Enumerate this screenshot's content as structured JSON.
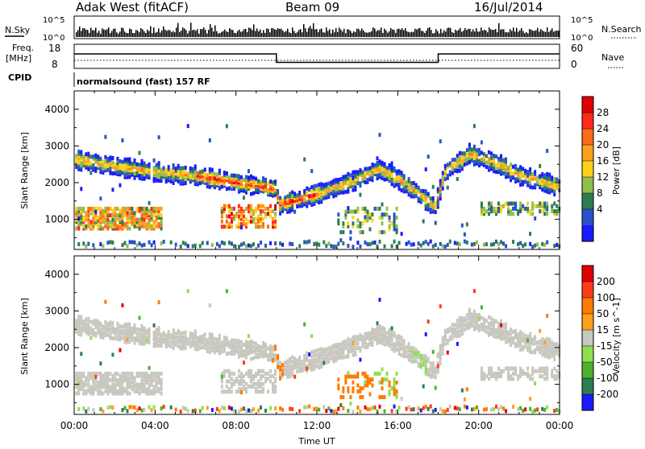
{
  "header": {
    "station": "Adak West (fitACF)",
    "beam": "Beam 09",
    "date": "16/Jul/2014"
  },
  "top_panels": {
    "nsky_label": "N.Sky",
    "nsky_ticks": [
      "10^5",
      "10^0"
    ],
    "nsearch_label": "N.Search",
    "nsearch_ticks": [
      "10^5",
      "10^0"
    ],
    "freq_label_1": "Freq.",
    "freq_label_2": "[MHz]",
    "freq_ticks": [
      "18",
      "8"
    ],
    "nave_label": "Nave",
    "nave_ticks": [
      "60",
      "0"
    ],
    "cpid_label": "CPID",
    "cpid_text": "normalsound (fast) 157 RF"
  },
  "chart_data": [
    {
      "type": "line",
      "title": "Freq. [MHz]",
      "x": [
        "00:00",
        "10:00",
        "10:00",
        "18:00",
        "18:00",
        "24:00"
      ],
      "values": [
        14,
        14,
        10.5,
        10.5,
        14,
        14
      ],
      "ylim": [
        8,
        18
      ]
    },
    {
      "type": "heatmap",
      "name": "power",
      "ylabel": "Slant Range [km]",
      "xlabel": "Time UT",
      "xlim": [
        0,
        24
      ],
      "ylim": [
        180,
        4500
      ],
      "yticks": [
        "4000",
        "3000",
        "2000",
        "1000"
      ],
      "xticks": [
        "00:00",
        "04:00",
        "08:00",
        "12:00",
        "16:00",
        "20:00",
        "00:00"
      ],
      "colorbar_label": "Power [dB]",
      "colorbar_ticks": [
        "28",
        "24",
        "20",
        "16",
        "12",
        "8",
        "4"
      ],
      "colorbar_colors": [
        "#1a1aff",
        "#2b52c8",
        "#2e7d52",
        "#8fbf4f",
        "#ffd21a",
        "#ffa01a",
        "#ff6a1a",
        "#ff2a1a",
        "#e00000"
      ]
    },
    {
      "type": "heatmap",
      "name": "velocity",
      "ylabel": "Slant Range [km]",
      "xlabel": "Time UT",
      "xlim": [
        0,
        24
      ],
      "ylim": [
        180,
        4500
      ],
      "yticks": [
        "4000",
        "3000",
        "2000",
        "1000"
      ],
      "xticks": [
        "00:00",
        "04:00",
        "08:00",
        "12:00",
        "16:00",
        "20:00",
        "00:00"
      ],
      "colorbar_label": "Velocity [m s^-1]",
      "colorbar_ticks": [
        "200",
        "100",
        "50",
        "15",
        "-15",
        "-50",
        "-100",
        "-200"
      ],
      "colorbar_colors": [
        "#1a1aff",
        "#2e7d52",
        "#4fb02e",
        "#8fdf4f",
        "#c8c8c0",
        "#ffa01a",
        "#ff7a00",
        "#ff3a1a",
        "#e00000"
      ]
    }
  ]
}
